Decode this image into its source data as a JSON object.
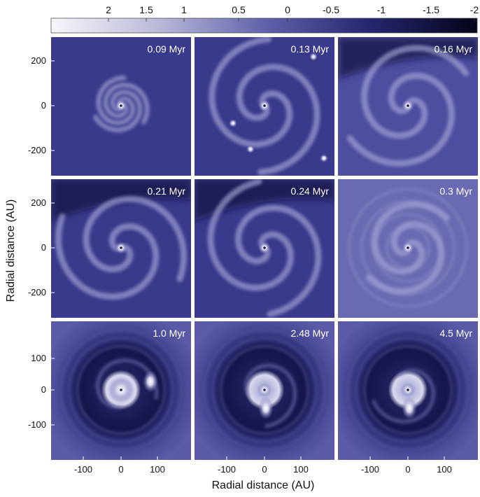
{
  "colorbar": {
    "ticks": [
      "2",
      "1.5",
      "1",
      "0.5",
      "0",
      "-0.5",
      "-1",
      "-1.5",
      "-2"
    ],
    "colors": {
      "high": "#f4f4f8",
      "mid": "#5a5aa8",
      "low": "#050518"
    }
  },
  "axes": {
    "xlabel": "Radial distance (AU)",
    "ylabel": "Radial distance (AU)",
    "row_ticks": [
      [
        "200",
        "0",
        "-200"
      ],
      [
        "200",
        "0",
        "-200"
      ],
      [
        "100",
        "0",
        "-100"
      ]
    ],
    "col_ticks": [
      "-100",
      "0",
      "100"
    ]
  },
  "panels": [
    {
      "time": "0.09 Myr",
      "style": "compact"
    },
    {
      "time": "0.13 Myr",
      "style": "filaments"
    },
    {
      "time": "0.16 Myr",
      "style": "swirl"
    },
    {
      "time": "0.21 Myr",
      "style": "arms"
    },
    {
      "time": "0.24 Myr",
      "style": "arms"
    },
    {
      "time": "0.3 Myr",
      "style": "rings"
    },
    {
      "time": "1.0 Myr",
      "style": "gap-disc"
    },
    {
      "time": "2.48 Myr",
      "style": "gap-disc"
    },
    {
      "time": "4.5 Myr",
      "style": "gap-disc"
    }
  ]
}
